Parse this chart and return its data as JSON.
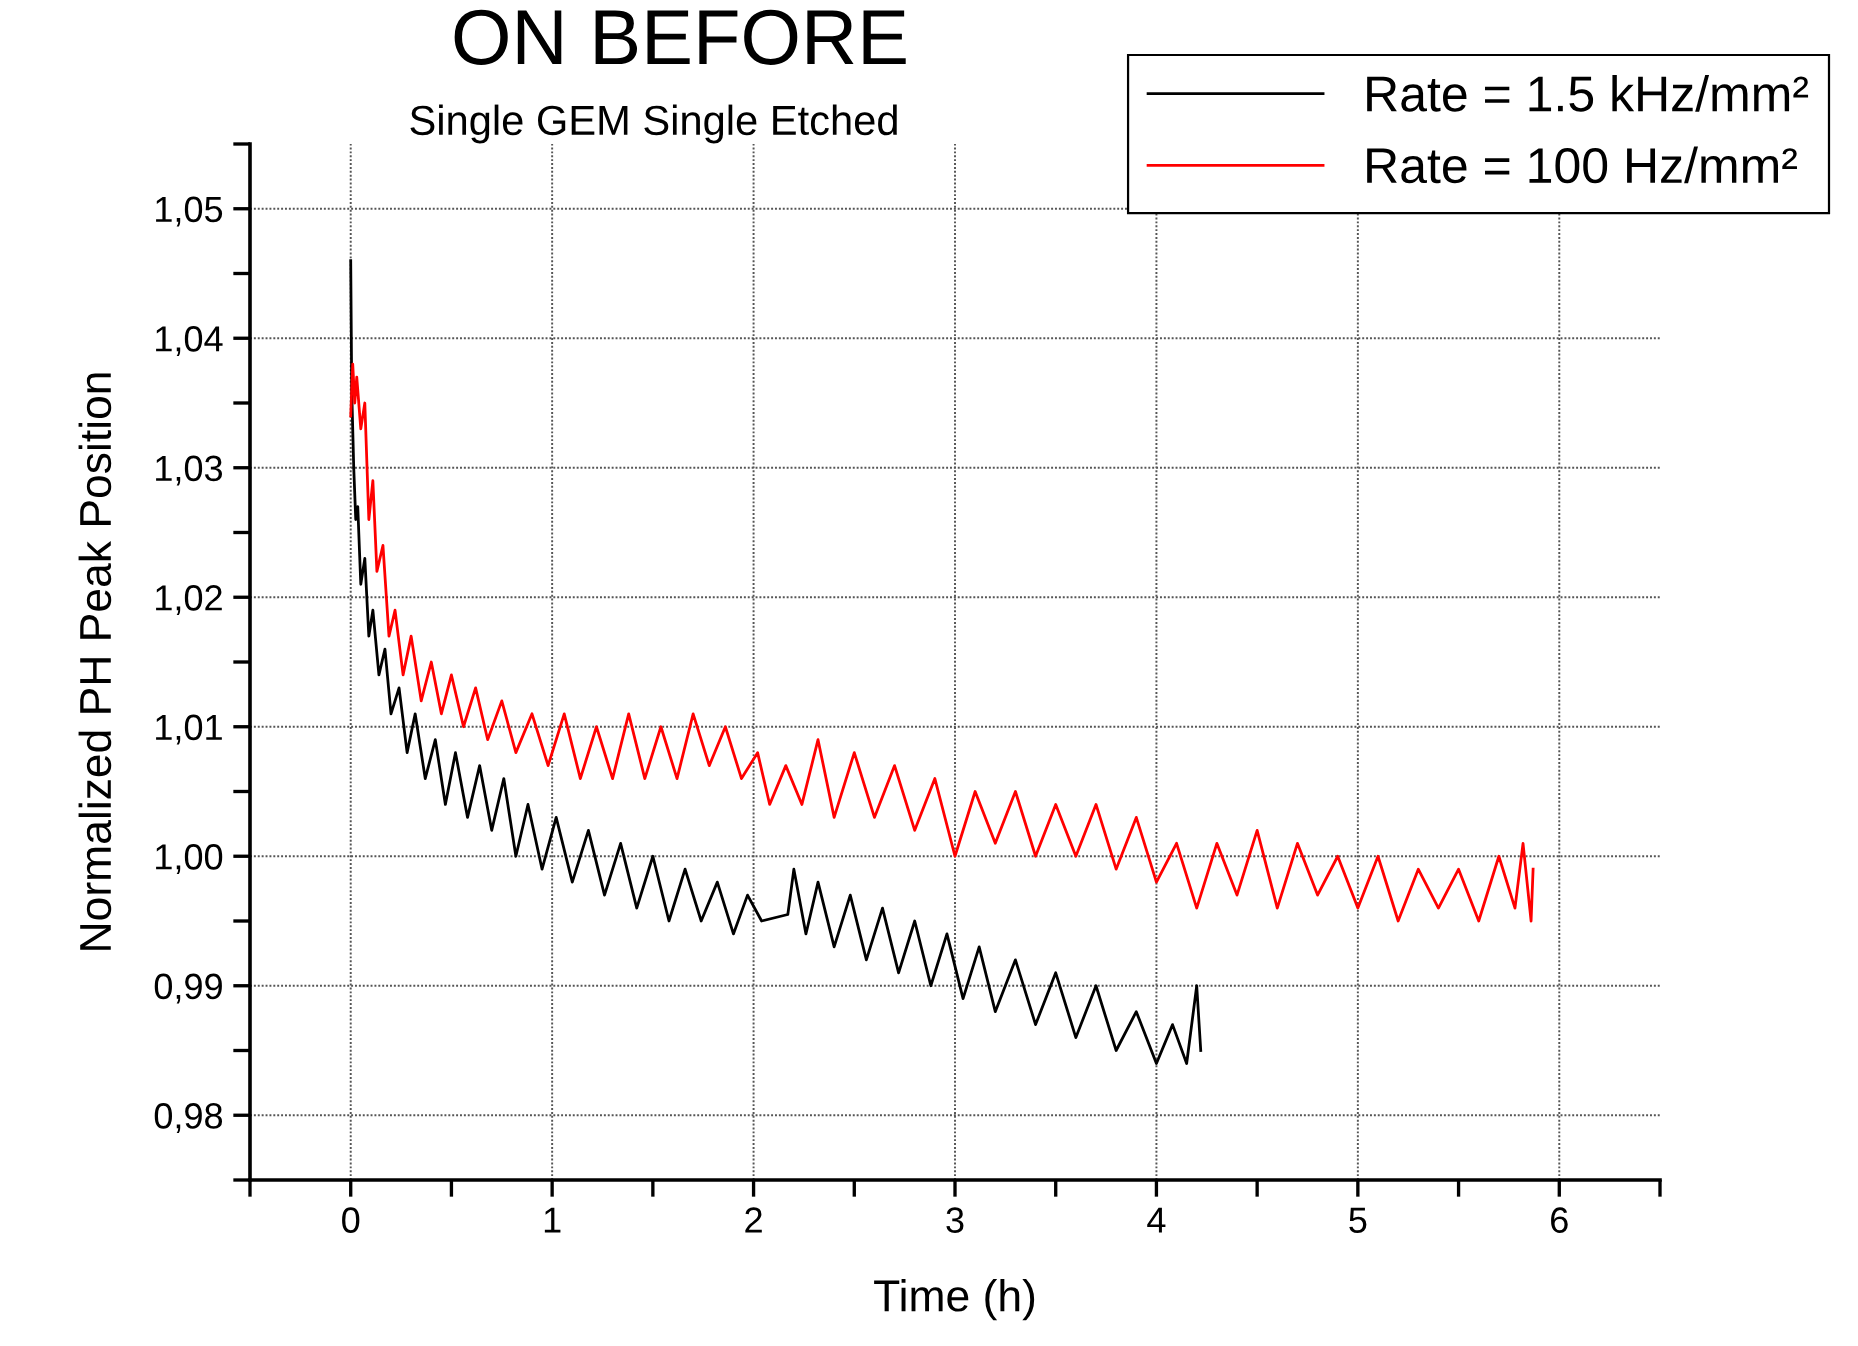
{
  "chart_data": {
    "type": "line",
    "title": "ON BEFORE",
    "subtitle": "Single GEM Single Etched",
    "xlabel": "Time (h)",
    "ylabel": "Normalized PH Peak Position",
    "xlim": [
      -0.5,
      6.5
    ],
    "ylim": [
      0.975,
      1.055
    ],
    "xticks": [
      {
        "value": -0.5,
        "label": null
      },
      0,
      {
        "value": 0.5,
        "label": null
      },
      1,
      {
        "value": 1.5,
        "label": null
      },
      2,
      {
        "value": 2.5,
        "label": null
      },
      3,
      {
        "value": 3.5,
        "label": null
      },
      4,
      {
        "value": 4.5,
        "label": null
      },
      5,
      {
        "value": 5.5,
        "label": null
      },
      6,
      {
        "value": 6.5,
        "label": null
      }
    ],
    "yticks": [
      {
        "value": 0.975,
        "label": null
      },
      {
        "value": 0.98,
        "label": "0,98"
      },
      {
        "value": 0.985,
        "label": null
      },
      {
        "value": 0.99,
        "label": "0,99"
      },
      {
        "value": 0.995,
        "label": null
      },
      {
        "value": 1.0,
        "label": "1,00"
      },
      {
        "value": 1.005,
        "label": null
      },
      {
        "value": 1.01,
        "label": "1,01"
      },
      {
        "value": 1.015,
        "label": null
      },
      {
        "value": 1.02,
        "label": "1,02"
      },
      {
        "value": 1.025,
        "label": null
      },
      {
        "value": 1.03,
        "label": "1,03"
      },
      {
        "value": 1.035,
        "label": null
      },
      {
        "value": 1.04,
        "label": "1,04"
      },
      {
        "value": 1.045,
        "label": null
      },
      {
        "value": 1.05,
        "label": "1,05"
      },
      {
        "value": 1.055,
        "label": null
      }
    ],
    "grid": true,
    "legend": "top right",
    "marker": "none",
    "line_style": "solid",
    "series": [
      {
        "name": "Rate = 1.5 kHz/mm²",
        "color": "#000000",
        "x": [
          0,
          0.005,
          0.015,
          0.025,
          0.035,
          0.05,
          0.07,
          0.09,
          0.11,
          0.14,
          0.17,
          0.2,
          0.24,
          0.28,
          0.32,
          0.37,
          0.42,
          0.47,
          0.52,
          0.58,
          0.64,
          0.7,
          0.76,
          0.82,
          0.88,
          0.95,
          1.02,
          1.1,
          1.18,
          1.26,
          1.34,
          1.42,
          1.5,
          1.58,
          1.66,
          1.74,
          1.82,
          1.9,
          1.97,
          2.04,
          2.17,
          2.2,
          2.26,
          2.32,
          2.4,
          2.48,
          2.56,
          2.64,
          2.72,
          2.8,
          2.88,
          2.96,
          3.04,
          3.12,
          3.2,
          3.3,
          3.4,
          3.5,
          3.6,
          3.7,
          3.8,
          3.9,
          4.0,
          4.08,
          4.15,
          4.2,
          4.22
        ],
        "values": [
          1.046,
          1.036,
          1.03,
          1.026,
          1.027,
          1.021,
          1.023,
          1.017,
          1.019,
          1.014,
          1.016,
          1.011,
          1.013,
          1.008,
          1.011,
          1.006,
          1.009,
          1.004,
          1.008,
          1.003,
          1.007,
          1.002,
          1.006,
          1.0,
          1.004,
          0.999,
          1.003,
          0.998,
          1.002,
          0.997,
          1.001,
          0.996,
          1.0,
          0.995,
          0.999,
          0.995,
          0.998,
          0.994,
          0.997,
          0.995,
          0.9955,
          0.999,
          0.994,
          0.998,
          0.993,
          0.997,
          0.992,
          0.996,
          0.991,
          0.995,
          0.99,
          0.994,
          0.989,
          0.993,
          0.988,
          0.992,
          0.987,
          0.991,
          0.986,
          0.99,
          0.985,
          0.988,
          0.984,
          0.987,
          0.984,
          0.99,
          0.985
        ]
      },
      {
        "name": "Rate = 100 Hz/mm²",
        "color": "#ff0000",
        "x": [
          0,
          0.01,
          0.02,
          0.03,
          0.05,
          0.07,
          0.09,
          0.11,
          0.13,
          0.16,
          0.19,
          0.22,
          0.26,
          0.3,
          0.35,
          0.4,
          0.45,
          0.5,
          0.56,
          0.62,
          0.68,
          0.75,
          0.82,
          0.9,
          0.98,
          1.06,
          1.14,
          1.22,
          1.3,
          1.38,
          1.46,
          1.54,
          1.62,
          1.7,
          1.78,
          1.86,
          1.94,
          2.02,
          2.08,
          2.16,
          2.24,
          2.32,
          2.4,
          2.5,
          2.6,
          2.7,
          2.8,
          2.9,
          3.0,
          3.1,
          3.2,
          3.3,
          3.4,
          3.5,
          3.6,
          3.7,
          3.8,
          3.9,
          4.0,
          4.1,
          4.2,
          4.3,
          4.4,
          4.5,
          4.6,
          4.7,
          4.8,
          4.9,
          5.0,
          5.1,
          5.2,
          5.3,
          5.4,
          5.5,
          5.6,
          5.7,
          5.78,
          5.82,
          5.86,
          5.87
        ],
        "values": [
          1.034,
          1.038,
          1.035,
          1.037,
          1.033,
          1.035,
          1.026,
          1.029,
          1.022,
          1.024,
          1.017,
          1.019,
          1.014,
          1.017,
          1.012,
          1.015,
          1.011,
          1.014,
          1.01,
          1.013,
          1.009,
          1.012,
          1.008,
          1.011,
          1.007,
          1.011,
          1.006,
          1.01,
          1.006,
          1.011,
          1.006,
          1.01,
          1.006,
          1.011,
          1.007,
          1.01,
          1.006,
          1.008,
          1.004,
          1.007,
          1.004,
          1.009,
          1.003,
          1.008,
          1.003,
          1.007,
          1.002,
          1.006,
          1.0,
          1.005,
          1.001,
          1.005,
          1.0,
          1.004,
          1.0,
          1.004,
          0.999,
          1.003,
          0.998,
          1.001,
          0.996,
          1.001,
          0.997,
          1.002,
          0.996,
          1.001,
          0.997,
          1.0,
          0.996,
          1.0,
          0.995,
          0.999,
          0.996,
          0.999,
          0.995,
          1.0,
          0.996,
          1.001,
          0.995,
          0.999
        ]
      }
    ]
  }
}
